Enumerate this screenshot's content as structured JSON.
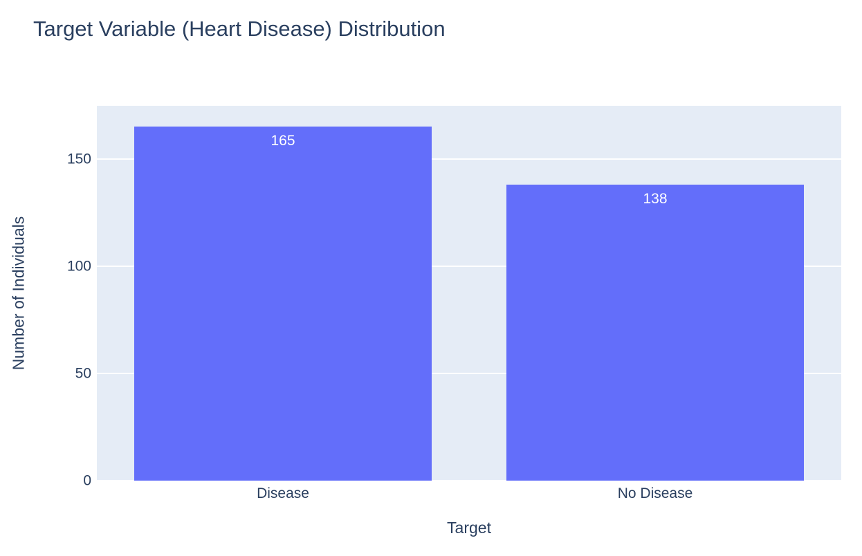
{
  "colors": {
    "bar": "#636efa",
    "plot_background": "#e5ecf6",
    "gridline": "#ffffff",
    "text": "#2a3f5f",
    "bar_label_text": "#ffffff",
    "page_background": "#ffffff"
  },
  "chart_data": {
    "type": "bar",
    "title": "Target Variable (Heart Disease) Distribution",
    "categories": [
      "Disease",
      "No Disease"
    ],
    "values": [
      165,
      138
    ],
    "bar_labels": [
      "165",
      "138"
    ],
    "xlabel": "Target",
    "ylabel": "Number of Individuals",
    "ylim": [
      0,
      174.8
    ],
    "yticks": [
      0,
      50,
      100,
      150
    ],
    "grid": true,
    "legend": "none",
    "bar_width_fraction": 0.8,
    "orientation": "vertical",
    "label_position": "inside-top"
  }
}
